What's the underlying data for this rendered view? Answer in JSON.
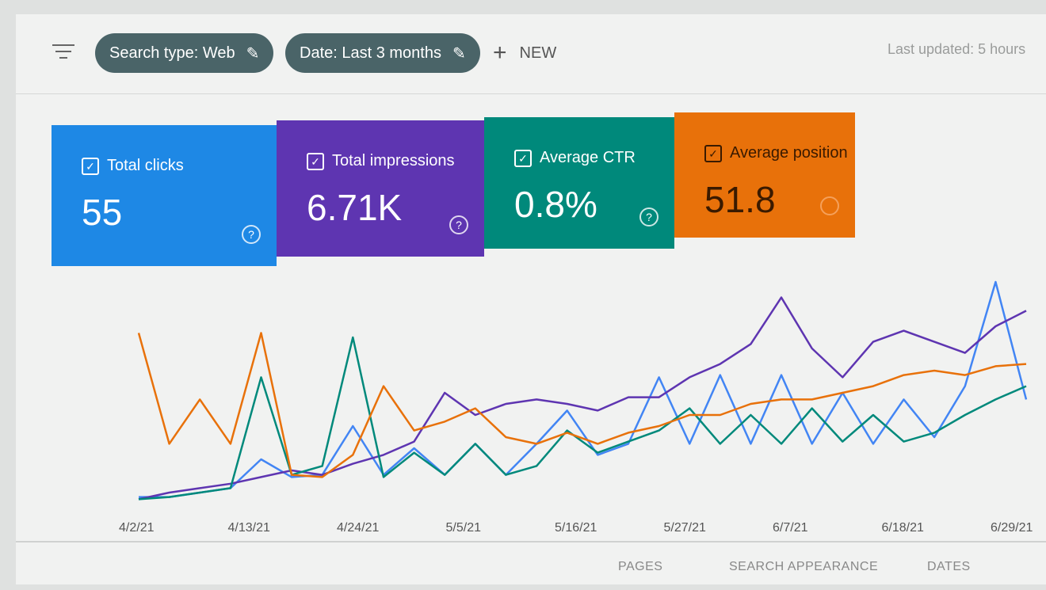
{
  "toolbar": {
    "filter_icon": "filter-icon",
    "chips": [
      {
        "label": "Search type: Web",
        "icon": "pencil-icon"
      },
      {
        "label": "Date: Last 3 months",
        "icon": "pencil-icon"
      }
    ],
    "new_label": "NEW",
    "last_updated": "Last updated: 5 hours"
  },
  "cards": [
    {
      "label": "Total clicks",
      "value": "55",
      "color": "#1e88e5",
      "checked": true
    },
    {
      "label": "Total impressions",
      "value": "6.71K",
      "color": "#5e35b1",
      "checked": true
    },
    {
      "label": "Average CTR",
      "value": "0.8%",
      "color": "#00897b",
      "checked": true
    },
    {
      "label": "Average position",
      "value": "51.8",
      "color": "#e8710a",
      "checked": true
    }
  ],
  "chart_data": {
    "type": "line",
    "x_tick_labels": [
      "4/2/21",
      "4/13/21",
      "4/24/21",
      "5/5/21",
      "5/16/21",
      "5/27/21",
      "6/7/21",
      "6/18/21",
      "6/29/21"
    ],
    "y_scale": "relative 0-100 per series (no y axis shown)",
    "grid": false,
    "series": [
      {
        "name": "Total clicks",
        "color": "#4285f4",
        "values": [
          3,
          3,
          5,
          7,
          20,
          12,
          13,
          35,
          13,
          25,
          13,
          27,
          13,
          27,
          42,
          22,
          27,
          57,
          27,
          58,
          27,
          58,
          27,
          50,
          27,
          47,
          30,
          53,
          100,
          47
        ]
      },
      {
        "name": "Total impressions",
        "color": "#5e35b1",
        "values": [
          2,
          5,
          7,
          9,
          12,
          15,
          13,
          18,
          22,
          28,
          50,
          40,
          45,
          47,
          45,
          42,
          48,
          48,
          57,
          63,
          72,
          93,
          70,
          57,
          73,
          78,
          73,
          68,
          80,
          87
        ]
      },
      {
        "name": "Average CTR",
        "color": "#00897b",
        "values": [
          2,
          3,
          5,
          7,
          57,
          13,
          17,
          75,
          12,
          23,
          13,
          27,
          13,
          17,
          33,
          23,
          28,
          33,
          43,
          27,
          40,
          27,
          43,
          28,
          40,
          28,
          32,
          40,
          47,
          53
        ]
      },
      {
        "name": "Average position",
        "color": "#e8710a",
        "values": [
          77,
          27,
          47,
          27,
          77,
          13,
          12,
          22,
          53,
          33,
          37,
          43,
          30,
          27,
          32,
          27,
          32,
          35,
          40,
          40,
          45,
          47,
          47,
          50,
          53,
          58,
          60,
          58,
          62,
          63
        ]
      }
    ]
  },
  "tabs": [
    "PAGES",
    "SEARCH APPEARANCE",
    "DATES"
  ]
}
